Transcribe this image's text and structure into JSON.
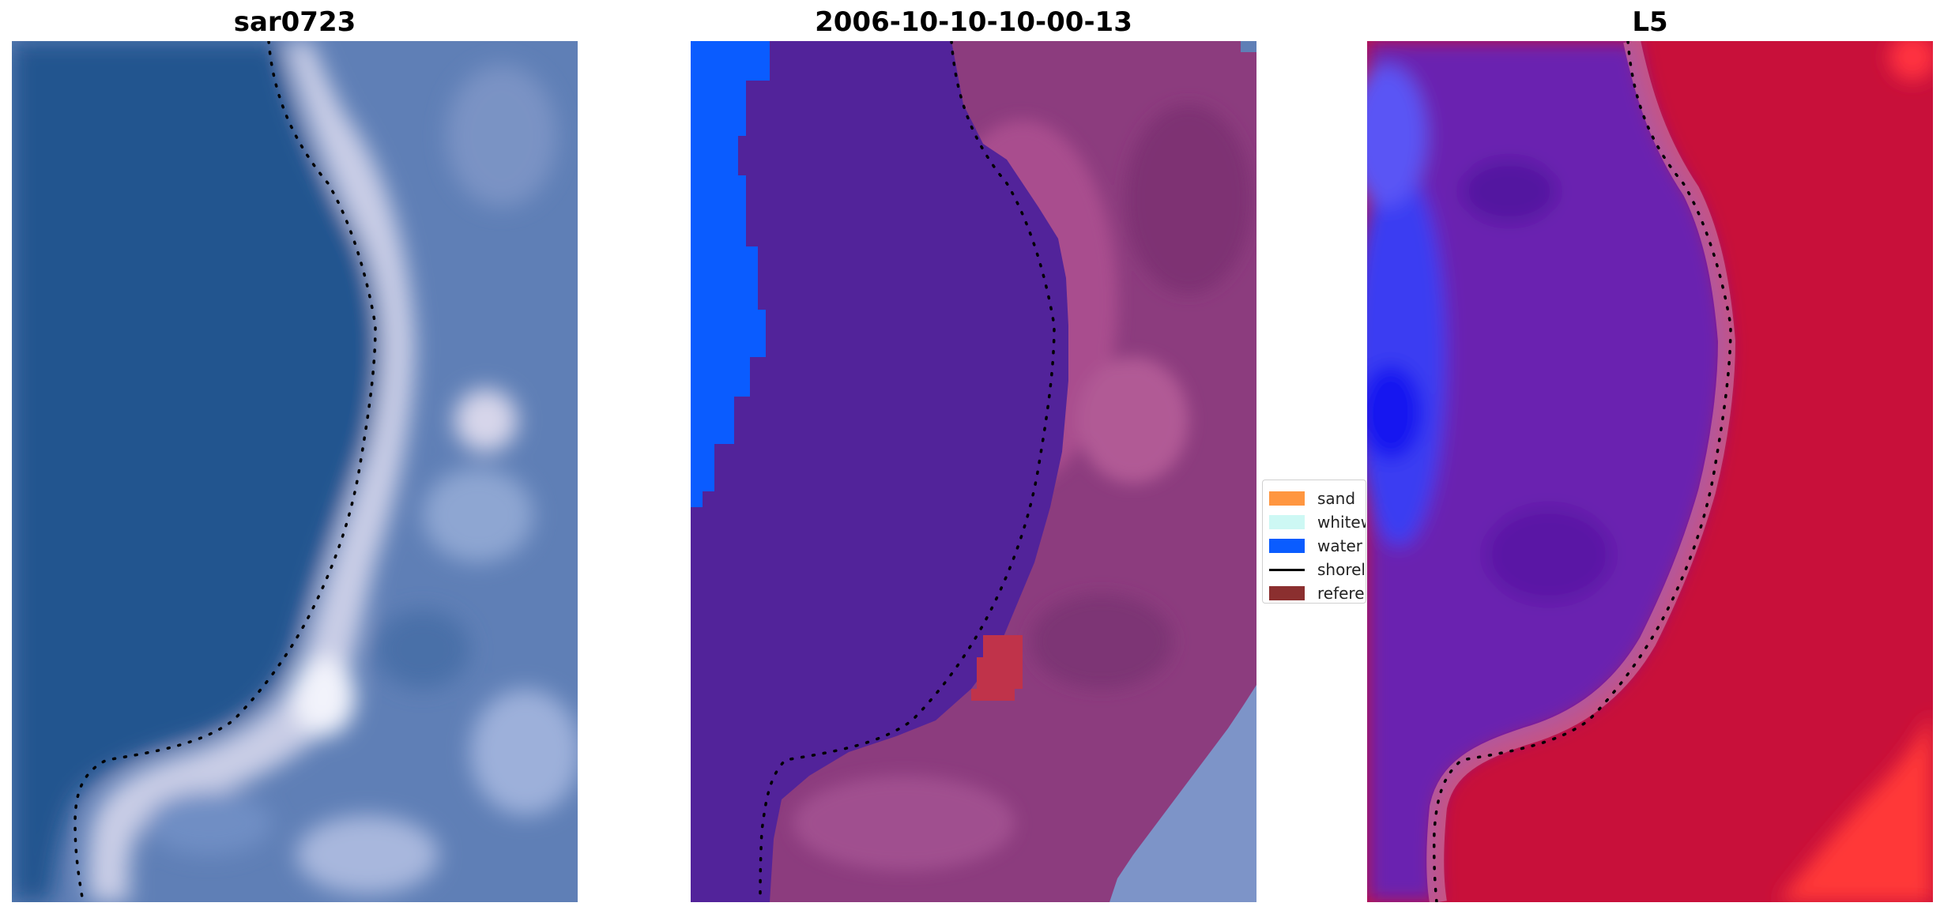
{
  "panels": [
    {
      "title": "sar0723",
      "scene": "rgb-composite"
    },
    {
      "title": "2006-10-10-10-00-13",
      "scene": "classification-overlay"
    },
    {
      "title": "L5",
      "scene": "index-map"
    }
  ],
  "legend": {
    "items": [
      {
        "label": "sand",
        "color": "#ff9640",
        "kind": "patch"
      },
      {
        "label": "whitew",
        "color": "#cdf8f4",
        "kind": "patch"
      },
      {
        "label": "water",
        "color": "#0a5cff",
        "kind": "patch"
      },
      {
        "label": "shorel",
        "color": "#000000",
        "kind": "line"
      },
      {
        "label": "referer",
        "color": "#8b2f2f",
        "kind": "patch"
      }
    ]
  },
  "colors": {
    "sea_dark": "#23558f",
    "sea_mid": "#2e5f98",
    "foam": "#c9cde6",
    "land_blue": "#5f7fb6",
    "class_water_body": "#52239a",
    "class_land": "#8c3c7e",
    "class_land_light": "#a94e8e",
    "index_red": "#c8103a",
    "index_purple": "#6a22b0",
    "index_blue": "#3b3cf2",
    "shoreline": "#000000"
  }
}
